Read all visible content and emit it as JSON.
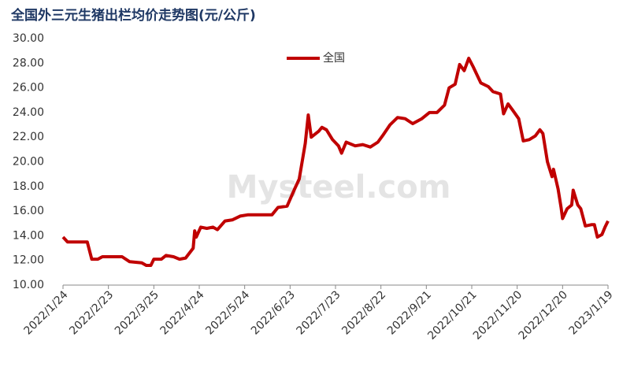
{
  "chart_data": {
    "type": "line",
    "title": "全国外三元生猪出栏均价走势图(元/公斤)",
    "watermark": "Mysteel.com",
    "x": [
      "2022/1/24",
      "2022/1/27",
      "2022/2/3",
      "2022/2/9",
      "2022/2/12",
      "2022/2/16",
      "2022/2/19",
      "2022/3/4",
      "2022/3/9",
      "2022/3/17",
      "2022/3/20",
      "2022/3/23",
      "2022/3/25",
      "2022/3/30",
      "2022/4/2",
      "2022/4/7",
      "2022/4/11",
      "2022/4/15",
      "2022/4/20",
      "2022/4/21",
      "2022/4/22",
      "2022/4/25",
      "2022/4/29",
      "2022/5/3",
      "2022/5/6",
      "2022/5/11",
      "2022/5/16",
      "2022/5/21",
      "2022/5/26",
      "2022/6/3",
      "2022/6/11",
      "2022/6/15",
      "2022/6/21",
      "2022/6/26",
      "2022/6/29",
      "2022/7/3",
      "2022/7/5",
      "2022/7/7",
      "2022/7/9",
      "2022/7/12",
      "2022/7/14",
      "2022/7/17",
      "2022/7/21",
      "2022/7/25",
      "2022/7/27",
      "2022/7/30",
      "2022/8/5",
      "2022/8/10",
      "2022/8/15",
      "2022/8/20",
      "2022/8/23",
      "2022/8/28",
      "2022/9/2",
      "2022/9/7",
      "2022/9/12",
      "2022/9/18",
      "2022/9/23",
      "2022/9/28",
      "2022/10/3",
      "2022/10/6",
      "2022/10/10",
      "2022/10/13",
      "2022/10/16",
      "2022/10/19",
      "2022/10/22",
      "2022/10/27",
      "2022/11/1",
      "2022/11/4",
      "2022/11/9",
      "2022/11/11",
      "2022/11/14",
      "2022/11/17",
      "2022/11/21",
      "2022/11/24",
      "2022/11/28",
      "2022/12/2",
      "2022/12/5",
      "2022/12/7",
      "2022/12/10",
      "2022/12/13",
      "2022/12/14",
      "2022/12/17",
      "2022/12/19",
      "2022/12/20",
      "2022/12/23",
      "2022/12/26",
      "2022/12/27",
      "2022/12/30",
      "2023/1/1",
      "2023/1/4",
      "2023/1/8",
      "2023/1/10",
      "2023/1/12",
      "2023/1/15",
      "2023/1/17",
      "2023/1/19"
    ],
    "series": [
      {
        "name": "全国",
        "color": "#c00000",
        "values": [
          13.9,
          13.5,
          13.5,
          13.5,
          12.1,
          12.1,
          12.3,
          12.3,
          11.9,
          11.8,
          11.6,
          11.6,
          12.1,
          12.1,
          12.4,
          12.3,
          12.1,
          12.2,
          13.0,
          14.4,
          13.9,
          14.7,
          14.6,
          14.7,
          14.5,
          15.2,
          15.3,
          15.6,
          15.7,
          15.7,
          15.7,
          16.3,
          16.4,
          17.8,
          18.6,
          21.5,
          23.8,
          22.0,
          22.2,
          22.5,
          22.8,
          22.6,
          21.8,
          21.3,
          20.7,
          21.6,
          21.3,
          21.4,
          21.2,
          21.6,
          22.1,
          23.0,
          23.6,
          23.5,
          23.1,
          23.5,
          24.0,
          24.0,
          24.6,
          26.0,
          26.3,
          27.9,
          27.4,
          28.4,
          27.7,
          26.4,
          26.1,
          25.7,
          25.5,
          23.9,
          24.7,
          24.2,
          23.5,
          21.7,
          21.8,
          22.1,
          22.6,
          22.3,
          20.0,
          18.8,
          19.4,
          17.8,
          16.3,
          15.4,
          16.2,
          16.5,
          17.7,
          16.5,
          16.2,
          14.8,
          14.9,
          14.9,
          13.9,
          14.1,
          14.7,
          15.2
        ]
      }
    ],
    "xlim": [
      "2022/1/24",
      "2023/1/19"
    ],
    "xticks": [
      "2022/1/24",
      "2022/2/23",
      "2022/3/25",
      "2022/4/24",
      "2022/5/24",
      "2022/6/23",
      "2022/7/23",
      "2022/8/22",
      "2022/9/21",
      "2022/10/21",
      "2022/11/20",
      "2022/12/20",
      "2023/1/19"
    ],
    "ylim": [
      10,
      30
    ],
    "yticks": [
      {
        "value": 10,
        "label": "10.00"
      },
      {
        "value": 12,
        "label": "12.00"
      },
      {
        "value": 14,
        "label": "14.00"
      },
      {
        "value": 16,
        "label": "16.00"
      },
      {
        "value": 18,
        "label": "18.00"
      },
      {
        "value": 20,
        "label": "20.00"
      },
      {
        "value": 22,
        "label": "22.00"
      },
      {
        "value": 24,
        "label": "24.00"
      },
      {
        "value": 26,
        "label": "26.00"
      },
      {
        "value": 28,
        "label": "28.00"
      },
      {
        "value": 30,
        "label": "30.00"
      }
    ],
    "grid": false
  }
}
